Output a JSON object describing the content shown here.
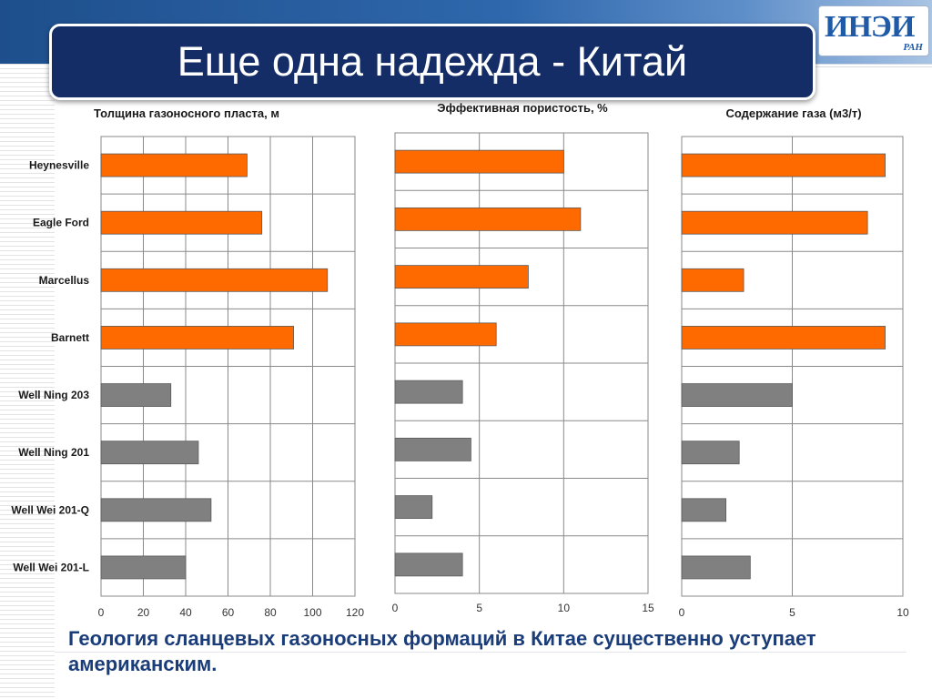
{
  "slide": {
    "title": "Еще одна надежда - Китай",
    "logo_text": "ИНЭИ",
    "logo_sub": "РАН",
    "caption": "Геология сланцевых газоносных формаций в Китае существенно уступает американским.",
    "colors": {
      "us_bar": "#ff6a00",
      "china_bar": "#808080",
      "title_bg": "#142d66",
      "caption": "#1a3c78"
    }
  },
  "chart_data": [
    {
      "type": "bar",
      "orientation": "horizontal",
      "title": "Толщина газоносного пласта, м",
      "categories": [
        "Heynesville",
        "Eagle Ford",
        "Marcellus",
        "Barnett",
        "Well Ning 203",
        "Well Ning 201",
        "Well Wei 201-Q",
        "Well Wei 201-L"
      ],
      "values": [
        69,
        76,
        107,
        91,
        33,
        46,
        52,
        40
      ],
      "xlim": [
        0,
        120
      ],
      "xticks": [
        "0",
        "20",
        "40",
        "60",
        "80",
        "100",
        "120"
      ],
      "grid": true,
      "bar_colors": [
        "us_bar",
        "us_bar",
        "us_bar",
        "us_bar",
        "china_bar",
        "china_bar",
        "china_bar",
        "china_bar"
      ]
    },
    {
      "type": "bar",
      "orientation": "horizontal",
      "title": "Эффективная пористость, %",
      "categories": [
        "Heynesville",
        "Eagle Ford",
        "Marcellus",
        "Barnett",
        "Well Ning 203",
        "Well Ning 201",
        "Well Wei 201-Q",
        "Well Wei 201-L"
      ],
      "values": [
        10,
        11,
        7.9,
        6,
        4,
        4.5,
        2.2,
        4
      ],
      "xlim": [
        0,
        15
      ],
      "xticks": [
        "0",
        "5",
        "10",
        "15"
      ],
      "grid": true,
      "bar_colors": [
        "us_bar",
        "us_bar",
        "us_bar",
        "us_bar",
        "china_bar",
        "china_bar",
        "china_bar",
        "china_bar"
      ]
    },
    {
      "type": "bar",
      "orientation": "horizontal",
      "title": "Содержание газа (м3/т)",
      "categories": [
        "Heynesville",
        "Eagle Ford",
        "Marcellus",
        "Barnett",
        "Well Ning 203",
        "Well Ning 201",
        "Well Wei 201-Q",
        "Well Wei 201-L"
      ],
      "values": [
        9.2,
        8.4,
        2.8,
        9.2,
        5,
        2.6,
        2,
        3.1
      ],
      "xlim": [
        0,
        10
      ],
      "xticks": [
        "0",
        "5",
        "10"
      ],
      "grid": true,
      "bar_colors": [
        "us_bar",
        "us_bar",
        "us_bar",
        "us_bar",
        "china_bar",
        "china_bar",
        "china_bar",
        "china_bar"
      ]
    }
  ]
}
